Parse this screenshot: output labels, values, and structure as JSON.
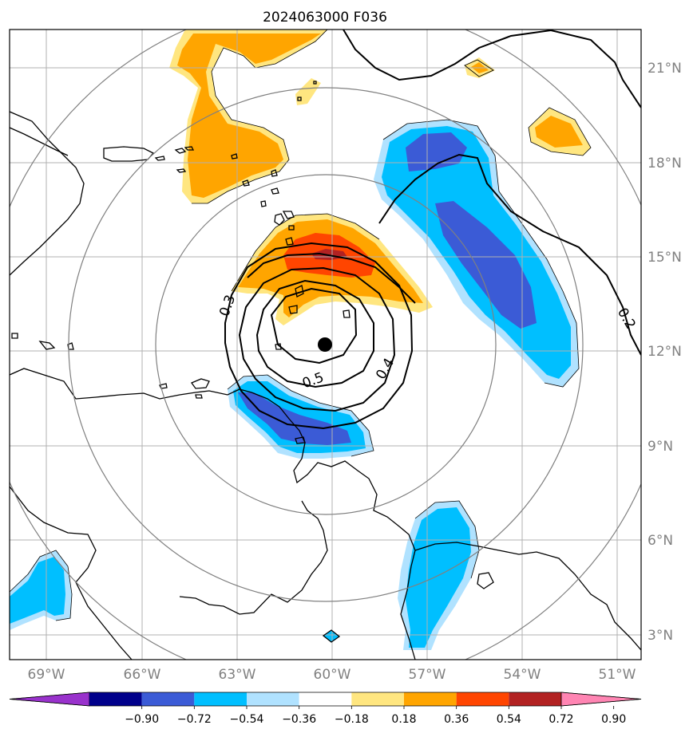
{
  "title": "2024063000 F036",
  "map": {
    "lat_labels": [
      "21°N",
      "18°N",
      "15°N",
      "12°N",
      "9°N",
      "6°N",
      "3°N"
    ],
    "lon_labels": [
      "69°W",
      "66°W",
      "63°W",
      "60°W",
      "57°W",
      "54°W",
      "51°W"
    ],
    "contour_labels": [
      "0.3",
      "0.4",
      "0.5",
      "0.2"
    ],
    "center_marker": "storm-center"
  },
  "colorbar": {
    "ticks": [
      "−0.90",
      "−0.72",
      "−0.54",
      "−0.36",
      "−0.18",
      "0.18",
      "0.36",
      "0.54",
      "0.72",
      "0.90"
    ],
    "colors": [
      "#9932cc",
      "#00008b",
      "#3b5bd6",
      "#00bfff",
      "#b0e2ff",
      "#ffffff",
      "#ffe680",
      "#ffa500",
      "#ff4500",
      "#b22222",
      "#ff85b3"
    ],
    "extend": "both"
  },
  "colors": {
    "orange": "#ffa500",
    "light_yellow": "#ffe680",
    "red_orange": "#ff4500",
    "dark_red": "#b22222",
    "deep_sky_blue": "#00bfff",
    "light_blue": "#b0e2ff",
    "royal_blue": "#3b5bd6",
    "grid": "#b0b0b0",
    "range_rings": "#808080"
  }
}
